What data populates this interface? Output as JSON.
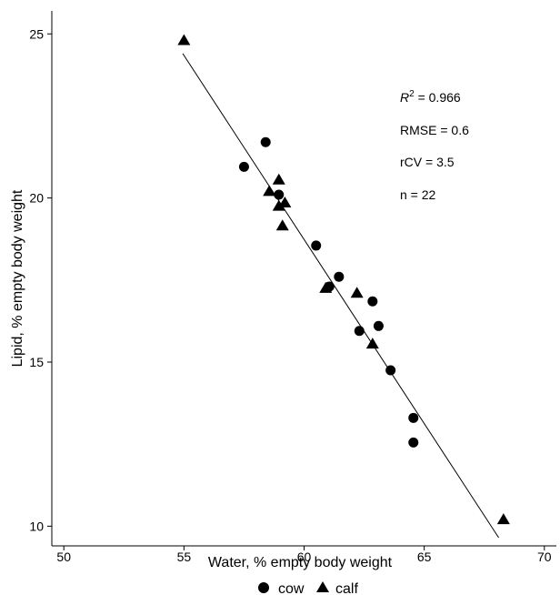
{
  "chart_data": {
    "type": "scatter",
    "xlabel": "Water, % empty body weight",
    "ylabel": "Lipid, % empty body weight",
    "xlim": [
      49.5,
      70.5
    ],
    "ylim": [
      9.4,
      25.7
    ],
    "xticks": [
      "50",
      "55",
      "60",
      "65",
      "70"
    ],
    "yticks": [
      "10",
      "15",
      "20",
      "25"
    ],
    "grid": false,
    "legend_position": "bottom-center",
    "series": [
      {
        "name": "cow",
        "marker": "circle",
        "points": [
          {
            "x": 57.5,
            "y": 20.95
          },
          {
            "x": 58.4,
            "y": 21.7
          },
          {
            "x": 58.95,
            "y": 20.1
          },
          {
            "x": 60.5,
            "y": 18.55
          },
          {
            "x": 61.05,
            "y": 17.3
          },
          {
            "x": 61.45,
            "y": 17.6
          },
          {
            "x": 62.3,
            "y": 15.95
          },
          {
            "x": 62.85,
            "y": 16.85
          },
          {
            "x": 63.1,
            "y": 16.1
          },
          {
            "x": 63.6,
            "y": 14.75
          },
          {
            "x": 64.55,
            "y": 13.3
          },
          {
            "x": 64.55,
            "y": 12.55
          }
        ]
      },
      {
        "name": "calf",
        "marker": "triangle",
        "points": [
          {
            "x": 55.0,
            "y": 24.8
          },
          {
            "x": 58.55,
            "y": 20.2
          },
          {
            "x": 58.95,
            "y": 20.55
          },
          {
            "x": 58.95,
            "y": 19.75
          },
          {
            "x": 59.2,
            "y": 19.85
          },
          {
            "x": 59.1,
            "y": 19.15
          },
          {
            "x": 60.9,
            "y": 17.25
          },
          {
            "x": 62.2,
            "y": 17.1
          },
          {
            "x": 62.85,
            "y": 15.55
          },
          {
            "x": 68.3,
            "y": 10.2
          }
        ]
      }
    ],
    "fit_line": {
      "x": [
        54.95,
        68.1
      ],
      "y": [
        24.4,
        9.65
      ]
    },
    "annotations": {
      "r2_symbol": "R",
      "r2_superscript": "2",
      "r2_value": " = 0.966",
      "rmse": "RMSE = 0.6",
      "rcv": "rCV = 3.5",
      "n": "n = 22"
    },
    "legend": {
      "cow": "cow",
      "calf": "calf"
    }
  }
}
